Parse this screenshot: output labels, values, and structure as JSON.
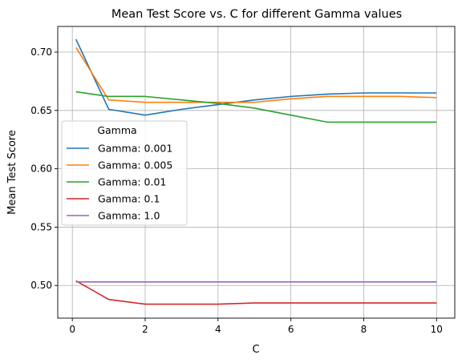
{
  "chart_data": {
    "type": "line",
    "title": "Mean Test Score vs. C for different Gamma values",
    "xlabel": "C",
    "ylabel": "Mean Test Score",
    "x": [
      0.1,
      1,
      2,
      3,
      4,
      5,
      6,
      7,
      8,
      9,
      10
    ],
    "xlim": [
      -0.4,
      10.5
    ],
    "ylim": [
      0.472,
      0.722
    ],
    "xticks": [
      0,
      2,
      4,
      6,
      8,
      10
    ],
    "xtick_labels": [
      "0",
      "2",
      "4",
      "6",
      "8",
      "10"
    ],
    "yticks": [
      0.5,
      0.55,
      0.6,
      0.65,
      0.7
    ],
    "ytick_labels": [
      "0.50",
      "0.55",
      "0.60",
      "0.65",
      "0.70"
    ],
    "grid": true,
    "legend": {
      "title": "Gamma",
      "placement": "center-left"
    },
    "series": [
      {
        "name": "Gamma: 0.001",
        "color": "#1f77b4",
        "values": [
          0.711,
          0.651,
          0.646,
          0.651,
          0.655,
          0.659,
          0.662,
          0.664,
          0.665,
          0.665,
          0.665
        ]
      },
      {
        "name": "Gamma: 0.005",
        "color": "#ff7f0e",
        "values": [
          0.704,
          0.659,
          0.657,
          0.657,
          0.657,
          0.657,
          0.66,
          0.662,
          0.662,
          0.662,
          0.661
        ]
      },
      {
        "name": "Gamma: 0.01",
        "color": "#2ca02c",
        "values": [
          0.666,
          0.662,
          0.662,
          0.659,
          0.656,
          0.652,
          0.646,
          0.64,
          0.64,
          0.64,
          0.64
        ]
      },
      {
        "name": "Gamma: 0.1",
        "color": "#d62728",
        "values": [
          0.504,
          0.488,
          0.484,
          0.484,
          0.484,
          0.485,
          0.485,
          0.485,
          0.485,
          0.485,
          0.485
        ]
      },
      {
        "name": "Gamma: 1.0",
        "color": "#9467bd",
        "values": [
          0.503,
          0.503,
          0.503,
          0.503,
          0.503,
          0.503,
          0.503,
          0.503,
          0.503,
          0.503,
          0.503
        ]
      }
    ]
  }
}
